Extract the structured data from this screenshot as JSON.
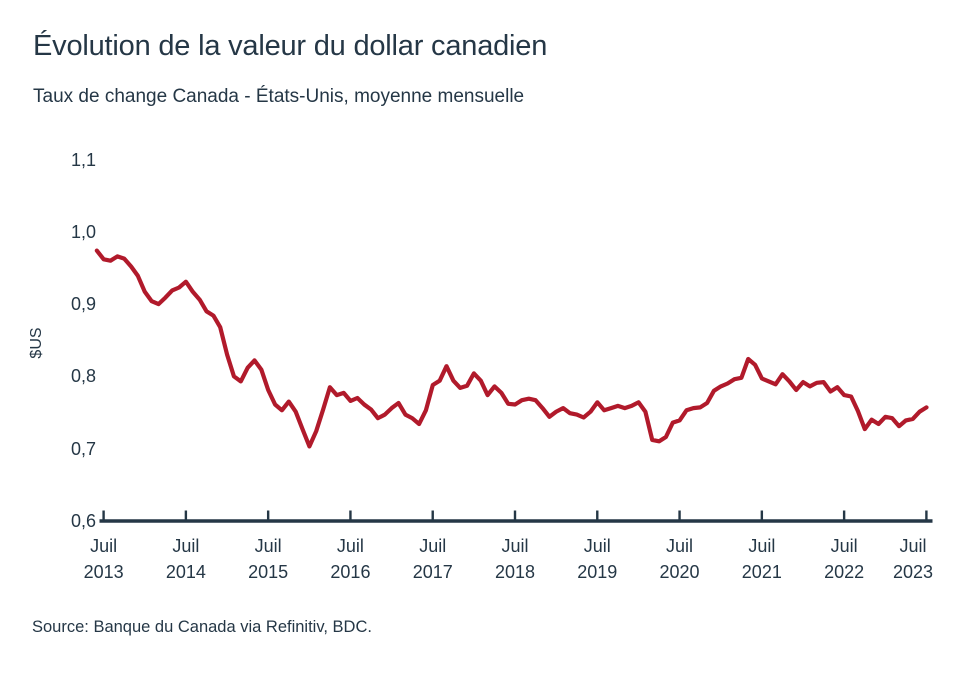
{
  "chart_data": {
    "type": "line",
    "title": "Évolution de la valeur du dollar canadien",
    "subtitle": "Taux de change Canada - États-Unis, moyenne mensuelle",
    "source": "Source: Banque du Canada via Refinitiv, BDC.",
    "ylabel": "$US",
    "ylim": [
      0.6,
      1.1
    ],
    "grid": false,
    "legend": false,
    "line_color": "#b11a2b",
    "axis_color": "#253746",
    "text_color": "#253746",
    "frequency": "monthly",
    "x_start": "Juin 2013",
    "x_end": "Juil 2023",
    "y_ticks": [
      {
        "label": "1,1",
        "value": 1.1
      },
      {
        "label": "1,0",
        "value": 1.0
      },
      {
        "label": "0,9",
        "value": 0.9
      },
      {
        "label": "0,8",
        "value": 0.8
      },
      {
        "label": "0,7",
        "value": 0.7
      },
      {
        "label": "0,6",
        "value": 0.6
      }
    ],
    "x_ticks": [
      {
        "month": "Juil",
        "year": "2013"
      },
      {
        "month": "Juil",
        "year": "2014"
      },
      {
        "month": "Juil",
        "year": "2015"
      },
      {
        "month": "Juil",
        "year": "2016"
      },
      {
        "month": "Juil",
        "year": "2017"
      },
      {
        "month": "Juil",
        "year": "2018"
      },
      {
        "month": "Juil",
        "year": "2019"
      },
      {
        "month": "Juil",
        "year": "2020"
      },
      {
        "month": "Juil",
        "year": "2021"
      },
      {
        "month": "Juil",
        "year": "2022"
      },
      {
        "month": "Juil",
        "year": "2023"
      }
    ],
    "x_tick_start_index": 1,
    "x_tick_step": 12,
    "series": [
      {
        "values": [
          0.974,
          0.962,
          0.96,
          0.966,
          0.963,
          0.952,
          0.939,
          0.917,
          0.904,
          0.9,
          0.909,
          0.919,
          0.923,
          0.931,
          0.917,
          0.906,
          0.89,
          0.884,
          0.868,
          0.83,
          0.8,
          0.793,
          0.812,
          0.822,
          0.809,
          0.781,
          0.761,
          0.753,
          0.765,
          0.751,
          0.727,
          0.703,
          0.724,
          0.754,
          0.785,
          0.774,
          0.777,
          0.766,
          0.77,
          0.761,
          0.754,
          0.742,
          0.747,
          0.756,
          0.763,
          0.747,
          0.742,
          0.734,
          0.753,
          0.788,
          0.794,
          0.814,
          0.794,
          0.784,
          0.787,
          0.804,
          0.794,
          0.774,
          0.786,
          0.777,
          0.762,
          0.761,
          0.767,
          0.769,
          0.767,
          0.756,
          0.744,
          0.751,
          0.756,
          0.749,
          0.747,
          0.743,
          0.751,
          0.764,
          0.753,
          0.756,
          0.759,
          0.756,
          0.759,
          0.764,
          0.751,
          0.712,
          0.71,
          0.716,
          0.736,
          0.739,
          0.753,
          0.756,
          0.757,
          0.763,
          0.78,
          0.786,
          0.79,
          0.796,
          0.798,
          0.824,
          0.816,
          0.797,
          0.793,
          0.789,
          0.803,
          0.793,
          0.781,
          0.792,
          0.786,
          0.791,
          0.792,
          0.779,
          0.785,
          0.774,
          0.772,
          0.752,
          0.727,
          0.74,
          0.734,
          0.744,
          0.742,
          0.731,
          0.739,
          0.741,
          0.751,
          0.757
        ]
      }
    ]
  }
}
